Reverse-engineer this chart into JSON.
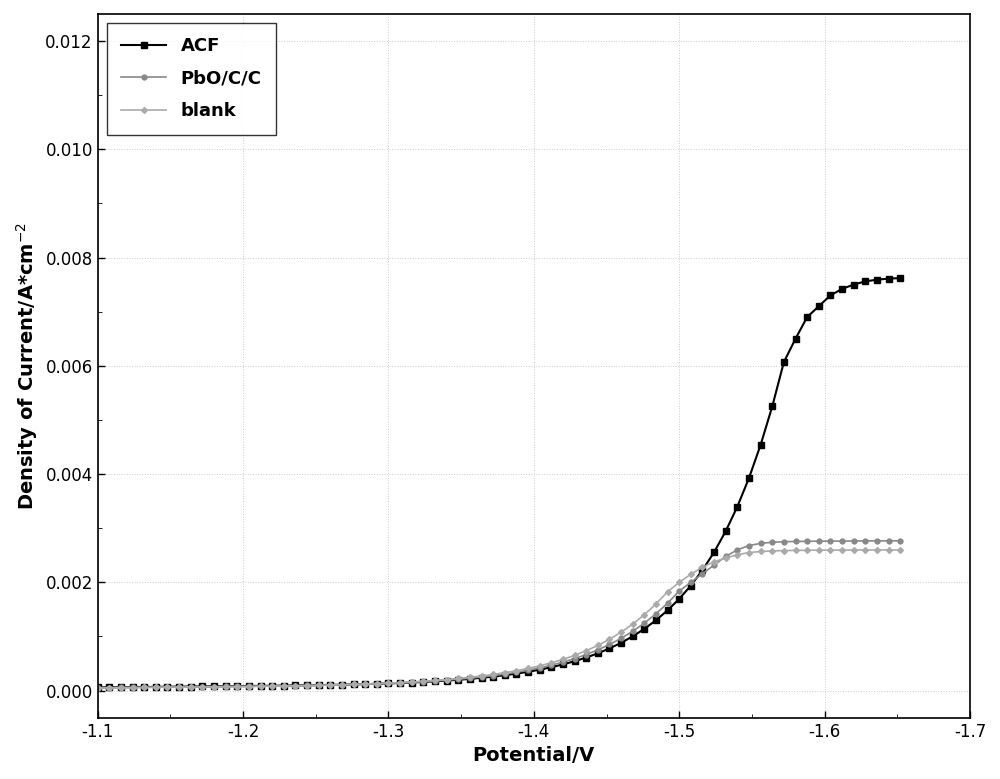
{
  "title": "",
  "xlabel": "Potential/V",
  "ylabel": "Density of Current/A*cm-2",
  "xlim": [
    -1.1,
    -1.7
  ],
  "ylim": [
    -0.0005,
    0.0125
  ],
  "yticks": [
    0.0,
    0.002,
    0.004,
    0.006,
    0.008,
    0.01,
    0.012
  ],
  "xticks": [
    -1.1,
    -1.2,
    -1.3,
    -1.4,
    -1.5,
    -1.6,
    -1.7
  ],
  "series": [
    {
      "label": "ACF",
      "color": "#000000",
      "marker": "s",
      "marker_size": 4.5,
      "linewidth": 1.5,
      "x": [
        -1.1,
        -1.108,
        -1.116,
        -1.124,
        -1.132,
        -1.14,
        -1.148,
        -1.156,
        -1.164,
        -1.172,
        -1.18,
        -1.188,
        -1.196,
        -1.204,
        -1.212,
        -1.22,
        -1.228,
        -1.236,
        -1.244,
        -1.252,
        -1.26,
        -1.268,
        -1.276,
        -1.284,
        -1.292,
        -1.3,
        -1.308,
        -1.316,
        -1.324,
        -1.332,
        -1.34,
        -1.348,
        -1.356,
        -1.364,
        -1.372,
        -1.38,
        -1.388,
        -1.396,
        -1.404,
        -1.412,
        -1.42,
        -1.428,
        -1.436,
        -1.444,
        -1.452,
        -1.46,
        -1.468,
        -1.476,
        -1.484,
        -1.492,
        -1.5,
        -1.508,
        -1.516,
        -1.524,
        -1.532,
        -1.54,
        -1.548,
        -1.556,
        -1.564,
        -1.572,
        -1.58,
        -1.588,
        -1.596,
        -1.604,
        -1.612,
        -1.62,
        -1.628,
        -1.636,
        -1.644,
        -1.652
      ],
      "y": [
        6e-05,
        6.2e-05,
        6.4e-05,
        6.6e-05,
        6.8e-05,
        7e-05,
        7.2e-05,
        7.4e-05,
        7.6e-05,
        7.8e-05,
        8e-05,
        8.2e-05,
        8.4e-05,
        8.6e-05,
        8.8e-05,
        9e-05,
        9.3e-05,
        9.6e-05,
        9.9e-05,
        0.000102,
        0.000106,
        0.00011,
        0.000115,
        0.00012,
        0.000126,
        0.000133,
        0.000141,
        0.00015,
        0.00016,
        0.000172,
        0.000185,
        0.0002,
        0.000217,
        0.000237,
        0.000259,
        0.000285,
        0.000314,
        0.000348,
        0.000387,
        0.000432,
        0.000484,
        0.000543,
        0.000611,
        0.000689,
        0.000779,
        0.000883,
        0.001003,
        0.001141,
        0.0013,
        0.001483,
        0.001695,
        0.00194,
        0.002225,
        0.002558,
        0.002946,
        0.0034,
        0.003928,
        0.00454,
        0.00525,
        0.00607,
        0.0065,
        0.0069,
        0.0071,
        0.0073,
        0.00742,
        0.0075,
        0.00756,
        0.00759,
        0.00761,
        0.00762
      ]
    },
    {
      "label": "PbO/C/C",
      "color": "#888888",
      "marker": "o",
      "marker_size": 3.5,
      "linewidth": 1.2,
      "x": [
        -1.1,
        -1.108,
        -1.116,
        -1.124,
        -1.132,
        -1.14,
        -1.148,
        -1.156,
        -1.164,
        -1.172,
        -1.18,
        -1.188,
        -1.196,
        -1.204,
        -1.212,
        -1.22,
        -1.228,
        -1.236,
        -1.244,
        -1.252,
        -1.26,
        -1.268,
        -1.276,
        -1.284,
        -1.292,
        -1.3,
        -1.308,
        -1.316,
        -1.324,
        -1.332,
        -1.34,
        -1.348,
        -1.356,
        -1.364,
        -1.372,
        -1.38,
        -1.388,
        -1.396,
        -1.404,
        -1.412,
        -1.42,
        -1.428,
        -1.436,
        -1.444,
        -1.452,
        -1.46,
        -1.468,
        -1.476,
        -1.484,
        -1.492,
        -1.5,
        -1.508,
        -1.516,
        -1.524,
        -1.532,
        -1.54,
        -1.548,
        -1.556,
        -1.564,
        -1.572,
        -1.58,
        -1.588,
        -1.596,
        -1.604,
        -1.612,
        -1.62,
        -1.628,
        -1.636,
        -1.644,
        -1.652
      ],
      "y": [
        5.5e-05,
        5.7e-05,
        5.9e-05,
        6.1e-05,
        6.3e-05,
        6.5e-05,
        6.7e-05,
        6.9e-05,
        7.1e-05,
        7.3e-05,
        7.5e-05,
        7.7e-05,
        7.9e-05,
        8.1e-05,
        8.3e-05,
        8.6e-05,
        8.9e-05,
        9.2e-05,
        9.6e-05,
        0.0001,
        0.000104,
        0.000109,
        0.000114,
        0.00012,
        0.000127,
        0.000135,
        0.000144,
        0.000154,
        0.000166,
        0.000179,
        0.000194,
        0.000211,
        0.00023,
        0.000252,
        0.000277,
        0.000306,
        0.000339,
        0.000377,
        0.00042,
        0.00047,
        0.000527,
        0.000592,
        0.000667,
        0.000753,
        0.000852,
        0.000966,
        0.001097,
        0.001247,
        0.001419,
        0.001615,
        0.00184,
        0.002,
        0.00216,
        0.00232,
        0.00248,
        0.0026,
        0.00268,
        0.00272,
        0.00274,
        0.00275,
        0.002755,
        0.002758,
        0.00276,
        0.002762,
        0.002763,
        0.002764,
        0.002765,
        0.002766,
        0.002766,
        0.002767
      ]
    },
    {
      "label": "blank",
      "color": "#aaaaaa",
      "marker": "D",
      "marker_size": 3.0,
      "linewidth": 1.2,
      "x": [
        -1.1,
        -1.108,
        -1.116,
        -1.124,
        -1.132,
        -1.14,
        -1.148,
        -1.156,
        -1.164,
        -1.172,
        -1.18,
        -1.188,
        -1.196,
        -1.204,
        -1.212,
        -1.22,
        -1.228,
        -1.236,
        -1.244,
        -1.252,
        -1.26,
        -1.268,
        -1.276,
        -1.284,
        -1.292,
        -1.3,
        -1.308,
        -1.316,
        -1.324,
        -1.332,
        -1.34,
        -1.348,
        -1.356,
        -1.364,
        -1.372,
        -1.38,
        -1.388,
        -1.396,
        -1.404,
        -1.412,
        -1.42,
        -1.428,
        -1.436,
        -1.444,
        -1.452,
        -1.46,
        -1.468,
        -1.476,
        -1.484,
        -1.492,
        -1.5,
        -1.508,
        -1.516,
        -1.524,
        -1.532,
        -1.54,
        -1.548,
        -1.556,
        -1.564,
        -1.572,
        -1.58,
        -1.588,
        -1.596,
        -1.604,
        -1.612,
        -1.62,
        -1.628,
        -1.636,
        -1.644,
        -1.652
      ],
      "y": [
        5e-05,
        5.2e-05,
        5.4e-05,
        5.6e-05,
        5.8e-05,
        6e-05,
        6.2e-05,
        6.4e-05,
        6.6e-05,
        6.8e-05,
        7e-05,
        7.2e-05,
        7.4e-05,
        7.6e-05,
        7.9e-05,
        8.2e-05,
        8.5e-05,
        8.9e-05,
        9.3e-05,
        9.7e-05,
        0.000102,
        0.000108,
        0.000114,
        0.000121,
        0.000129,
        0.000138,
        0.000148,
        0.00016,
        0.000173,
        0.000188,
        0.000205,
        0.000224,
        0.000246,
        0.000271,
        0.000299,
        0.000331,
        0.000368,
        0.00041,
        0.000458,
        0.000514,
        0.000578,
        0.000652,
        0.000737,
        0.000835,
        0.000948,
        0.001079,
        0.001229,
        0.001402,
        0.0016,
        0.001826,
        0.002,
        0.00215,
        0.00228,
        0.00238,
        0.00245,
        0.00251,
        0.00255,
        0.00257,
        0.00258,
        0.002587,
        0.00259,
        0.002592,
        0.002594,
        0.002595,
        0.002596,
        0.002597,
        0.002597,
        0.002598,
        0.002598,
        0.002598
      ]
    }
  ],
  "background_color": "#ffffff",
  "grid_color": "#cccccc",
  "legend_fontsize": 13,
  "axis_label_fontsize": 14,
  "tick_label_fontsize": 12,
  "marker_every": 1
}
